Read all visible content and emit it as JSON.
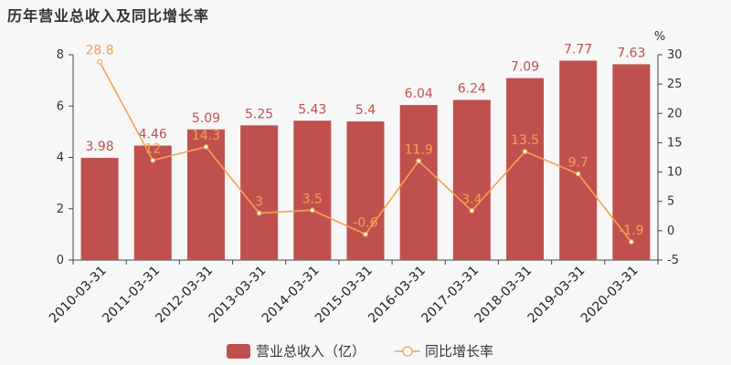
{
  "title": "历年营业总收入及同比增长率",
  "chart_data": {
    "type": "bar",
    "categories": [
      "2010-03-31",
      "2011-03-31",
      "2012-03-31",
      "2013-03-31",
      "2014-03-31",
      "2015-03-31",
      "2016-03-31",
      "2017-03-31",
      "2018-03-31",
      "2019-03-31",
      "2020-03-31"
    ],
    "series": [
      {
        "name": "营业总收入（亿）",
        "type": "bar",
        "axis": "left",
        "color": "#c0504d",
        "values": [
          3.98,
          4.46,
          5.09,
          5.25,
          5.43,
          5.4,
          6.04,
          6.24,
          7.09,
          7.77,
          7.63
        ],
        "labels": [
          "3.98",
          "4.46",
          "5.09",
          "5.25",
          "5.43",
          "5.4",
          "6.04",
          "6.24",
          "7.09",
          "7.77",
          "7.63"
        ]
      },
      {
        "name": "同比增长率",
        "type": "line",
        "axis": "right",
        "color": "#f5a14f",
        "values": [
          28.8,
          12,
          14.3,
          3,
          3.5,
          -0.6,
          11.9,
          3.4,
          13.5,
          9.7,
          -1.9
        ],
        "labels": [
          "28.8",
          "12",
          "14.3",
          "3",
          "3.5",
          "-0.6",
          "11.9",
          "3.4",
          "13.5",
          "9.7",
          "-1.9"
        ]
      }
    ],
    "y_left": {
      "min": 0,
      "max": 8,
      "ticks": [
        "0",
        "2",
        "4",
        "6",
        "8"
      ]
    },
    "y_right": {
      "min": -5,
      "max": 30,
      "ticks": [
        "-5",
        "0",
        "5",
        "10",
        "15",
        "20",
        "25",
        "30"
      ],
      "unit": "%"
    },
    "grid": false,
    "legend_position": "bottom-center"
  }
}
